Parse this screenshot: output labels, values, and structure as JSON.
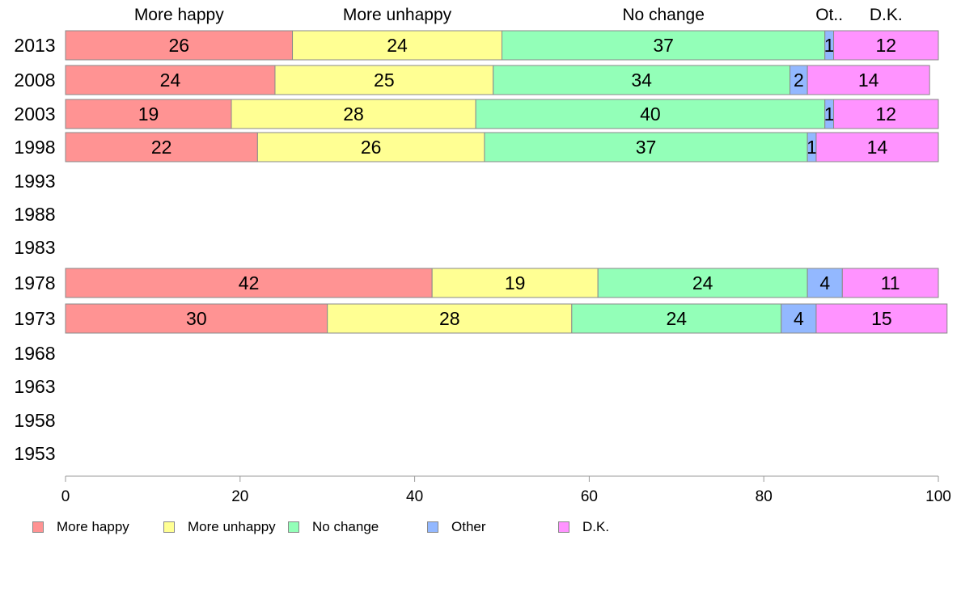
{
  "chart_data": {
    "type": "bar",
    "orientation": "horizontal",
    "stacked": true,
    "categories": [
      "2013",
      "2008",
      "2003",
      "1998",
      "1993",
      "1988",
      "1983",
      "1978",
      "1973",
      "1968",
      "1963",
      "1958",
      "1953"
    ],
    "series": [
      {
        "name": "More happy",
        "short_name": "More happy",
        "color": "#ff9393",
        "values": [
          26,
          24,
          19,
          22,
          null,
          null,
          null,
          42,
          30,
          null,
          null,
          null,
          null
        ],
        "labels": [
          "26",
          "24",
          "19",
          "22",
          null,
          null,
          null,
          "42",
          "30",
          null,
          null,
          null,
          null
        ]
      },
      {
        "name": "More unhappy",
        "short_name": "More unhappy",
        "color": "#ffff93",
        "values": [
          24,
          25,
          28,
          26,
          null,
          null,
          null,
          19,
          28,
          null,
          null,
          null,
          null
        ],
        "labels": [
          "24",
          "25",
          "28",
          "26",
          null,
          null,
          null,
          "19",
          "28",
          null,
          null,
          null,
          null
        ]
      },
      {
        "name": "No change",
        "short_name": "No change",
        "color": "#93ffb8",
        "values": [
          37,
          34,
          40,
          37,
          null,
          null,
          null,
          24,
          24,
          null,
          null,
          null,
          null
        ],
        "labels": [
          "37",
          "34",
          "40",
          "37",
          null,
          null,
          null,
          "24",
          "24",
          null,
          null,
          null,
          null
        ]
      },
      {
        "name": "Other",
        "short_name": "Ot..",
        "color": "#93b8ff",
        "values": [
          1,
          2,
          1,
          1,
          null,
          null,
          null,
          4,
          4,
          null,
          null,
          null,
          null
        ],
        "labels": [
          "1",
          "2",
          "1",
          "1",
          null,
          null,
          null,
          "4",
          "4",
          null,
          null,
          null,
          null
        ]
      },
      {
        "name": "D.K.",
        "short_name": "D.K.",
        "color": "#ff93ff",
        "values": [
          12,
          14,
          12,
          14,
          null,
          null,
          null,
          11,
          15,
          null,
          null,
          null,
          null
        ],
        "labels": [
          "12",
          "14",
          "12",
          "14",
          null,
          null,
          null,
          "11",
          "15",
          null,
          null,
          null,
          null
        ]
      }
    ],
    "xlim": [
      0,
      100
    ],
    "xticks": [
      "0",
      "20",
      "40",
      "60",
      "80",
      "100"
    ],
    "grid": false,
    "legend_position": "bottom",
    "header_labels_position": "top"
  }
}
